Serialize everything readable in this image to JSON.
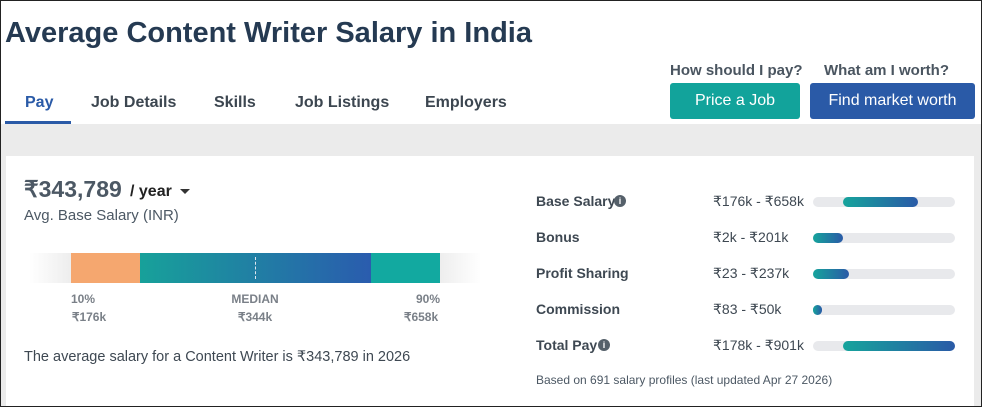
{
  "header": {
    "title": "Average Content Writer Salary in India"
  },
  "tabs": [
    "Pay",
    "Job Details",
    "Skills",
    "Job Listings",
    "Employers"
  ],
  "actions": [
    {
      "prompt": "How should I pay?",
      "button": "Price a Job"
    },
    {
      "prompt": "What am I worth?",
      "button": "Find market worth"
    }
  ],
  "summary": {
    "amount": "₹343,789",
    "period": "/ year",
    "label": "Avg. Base Salary (INR)",
    "percentiles": [
      {
        "label": "10%",
        "value": "₹176k"
      },
      {
        "label": "MEDIAN",
        "value": "₹344k"
      },
      {
        "label": "90%",
        "value": "₹658k"
      }
    ],
    "sentence": "The average salary for a Content Writer is ₹343,789 in 2026"
  },
  "breakdown": {
    "rows": [
      {
        "label": "Base Salary",
        "range": "₹176k - ₹658k"
      },
      {
        "label": "Bonus",
        "range": "₹2k - ₹201k"
      },
      {
        "label": "Profit Sharing",
        "range": "₹23 - ₹237k"
      },
      {
        "label": "Commission",
        "range": "₹83 - ₹50k"
      },
      {
        "label": "Total Pay",
        "range": "₹178k - ₹901k"
      }
    ],
    "footnote": "Based on 691 salary profiles (last updated Apr 27 2026)"
  }
}
